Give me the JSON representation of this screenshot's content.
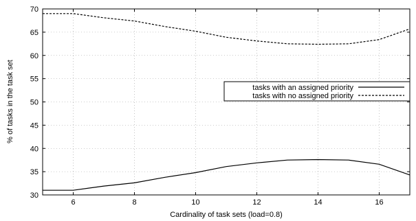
{
  "chart_data": {
    "type": "line",
    "xlabel": "Cardinality of task sets (load=0.8)",
    "ylabel": "% of tasks in the task set",
    "xlim": [
      5,
      17
    ],
    "ylim": [
      30,
      70
    ],
    "xticks": [
      6,
      8,
      10,
      12,
      14,
      16
    ],
    "yticks": [
      30,
      35,
      40,
      45,
      50,
      55,
      60,
      65,
      70
    ],
    "grid": true,
    "legend_position": "right",
    "series": [
      {
        "name": "tasks with an assigned priority",
        "style": "solid",
        "x": [
          5,
          6,
          7,
          8,
          9,
          10,
          11,
          12,
          13,
          14,
          15,
          16,
          17
        ],
        "values": [
          31.0,
          31.0,
          31.9,
          32.6,
          33.8,
          34.8,
          36.1,
          36.9,
          37.5,
          37.6,
          37.5,
          36.6,
          34.3
        ]
      },
      {
        "name": "tasks with no assigned priority",
        "style": "dashed",
        "x": [
          5,
          6,
          7,
          8,
          9,
          10,
          11,
          12,
          13,
          14,
          15,
          16,
          17
        ],
        "values": [
          69.0,
          69.0,
          68.1,
          67.4,
          66.2,
          65.2,
          63.9,
          63.1,
          62.5,
          62.4,
          62.5,
          63.4,
          65.7
        ]
      }
    ]
  }
}
